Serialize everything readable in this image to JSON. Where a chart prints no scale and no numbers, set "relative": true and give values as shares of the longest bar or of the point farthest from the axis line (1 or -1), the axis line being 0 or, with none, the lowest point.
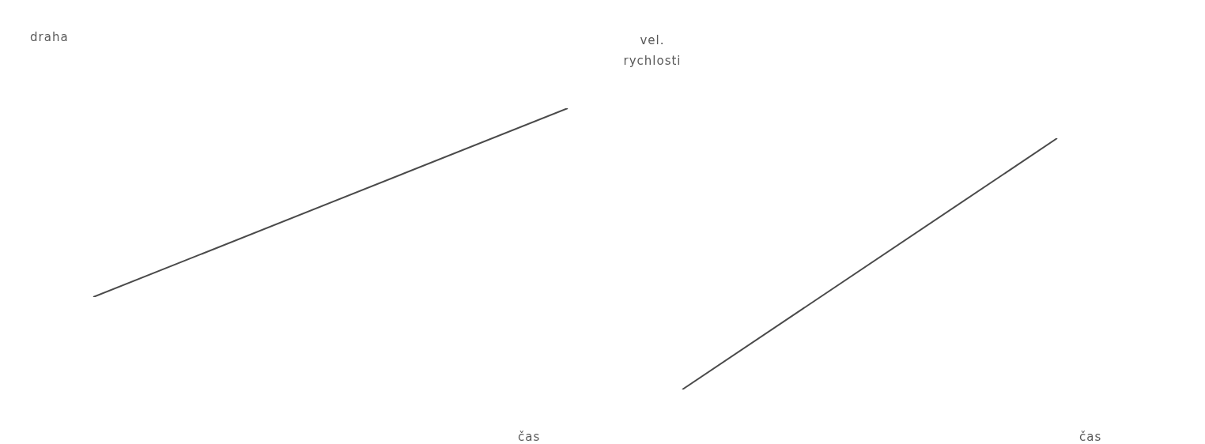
{
  "chart_data": [
    {
      "type": "line",
      "ylabel": "draha",
      "xlabel": "čas",
      "categories": [
        null,
        null
      ],
      "relative": true,
      "color": "#4a4a4a",
      "values": [
        0,
        1
      ]
    },
    {
      "type": "line",
      "ylabel": "vel. rychlosti",
      "xlabel": "čas",
      "categories": [
        null,
        null
      ],
      "relative": true,
      "color": "#4a4a4a",
      "values": [
        0,
        1
      ]
    }
  ]
}
